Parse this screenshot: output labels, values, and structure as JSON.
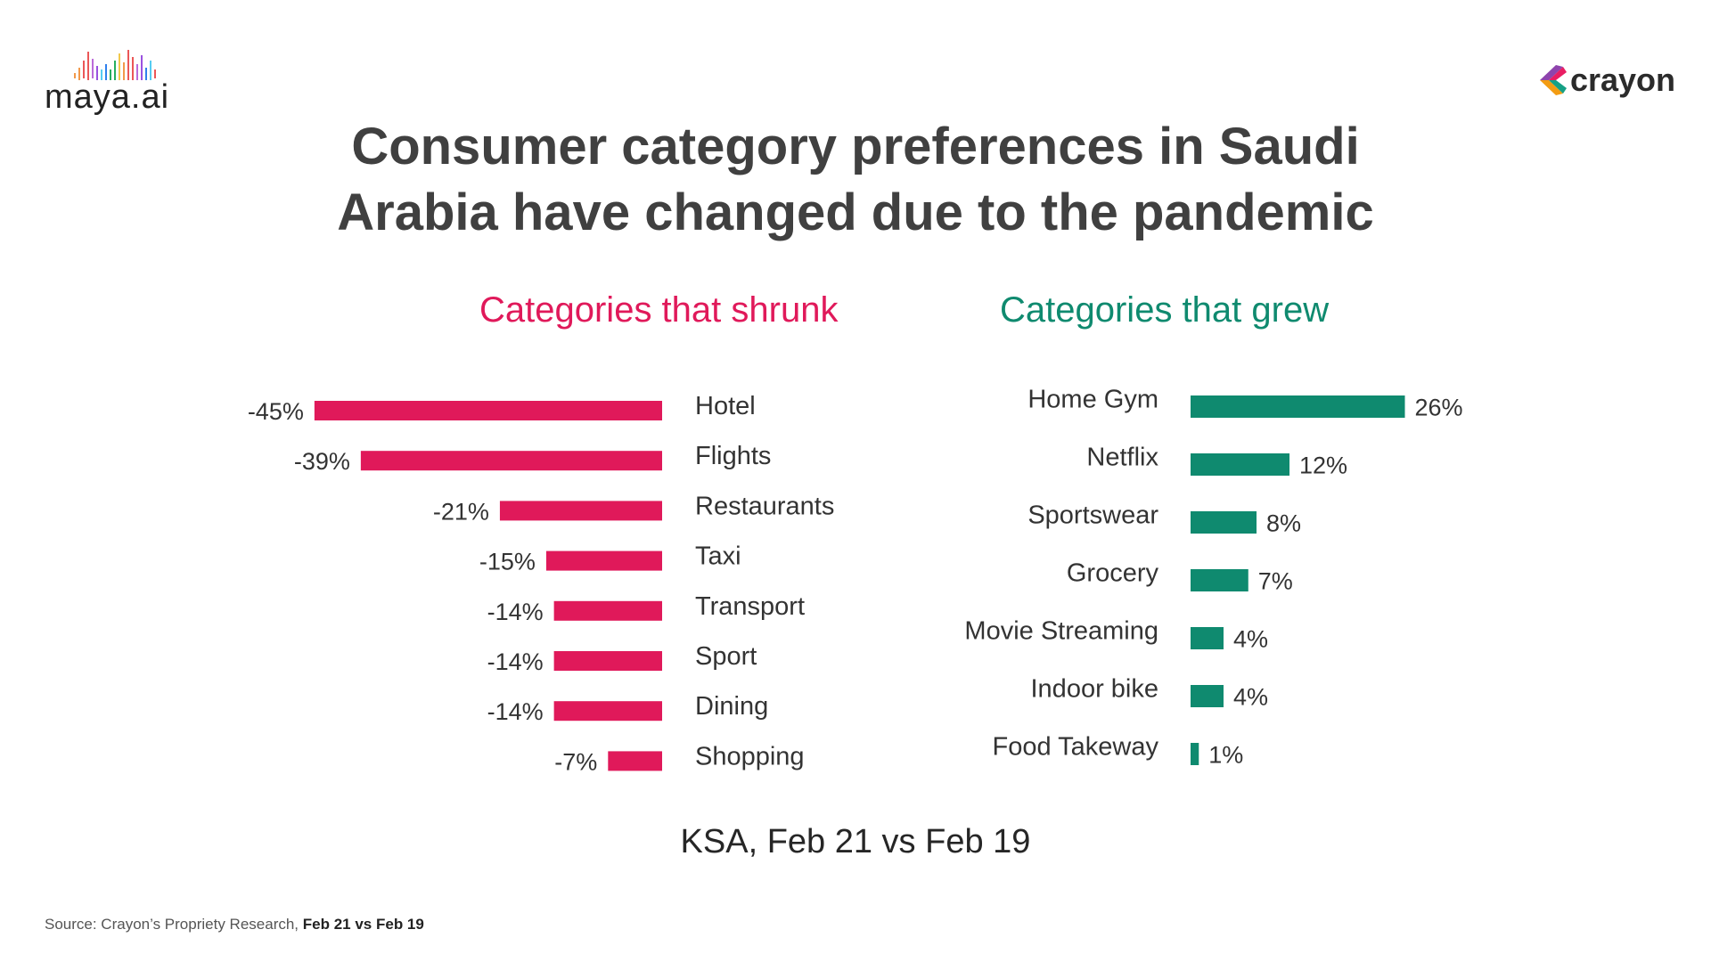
{
  "branding": {
    "left_logo_text": "maya.ai",
    "right_logo_text": "crayon"
  },
  "title_lines": [
    "Consumer category preferences in Saudi",
    "Arabia have changed due to the pandemic"
  ],
  "colors": {
    "shrunk": "#e0195a",
    "grew": "#0f8a6f",
    "title": "#404040"
  },
  "chart_data": [
    {
      "type": "bar",
      "orientation": "horizontal",
      "title": "Categories that shrunk",
      "categories": [
        "Hotel",
        "Flights",
        "Restaurants",
        "Taxi",
        "Transport",
        "Sport",
        "Dining",
        "Shopping"
      ],
      "values": [
        -45,
        -39,
        -21,
        -15,
        -14,
        -14,
        -14,
        -7
      ],
      "value_labels": [
        "-45%",
        "-39%",
        "-21%",
        "-15%",
        "-14%",
        "-14%",
        "-14%",
        "-7%"
      ],
      "unit": "%",
      "color": "#e0195a"
    },
    {
      "type": "bar",
      "orientation": "horizontal",
      "title": "Categories that grew",
      "categories": [
        "Home Gym",
        "Netflix",
        "Sportswear",
        "Grocery",
        "Movie Streaming",
        "Indoor bike",
        "Food Takeway"
      ],
      "values": [
        26,
        12,
        8,
        7,
        4,
        4,
        1
      ],
      "value_labels": [
        "26%",
        "12%",
        "8%",
        "7%",
        "4%",
        "4%",
        "1%"
      ],
      "unit": "%",
      "color": "#0f8a6f"
    }
  ],
  "period_label": "KSA, Feb 21 vs Feb 19",
  "source": {
    "prefix": "Source: Crayon’s Propriety Research, ",
    "bold": "Feb 21 vs Feb 19"
  }
}
